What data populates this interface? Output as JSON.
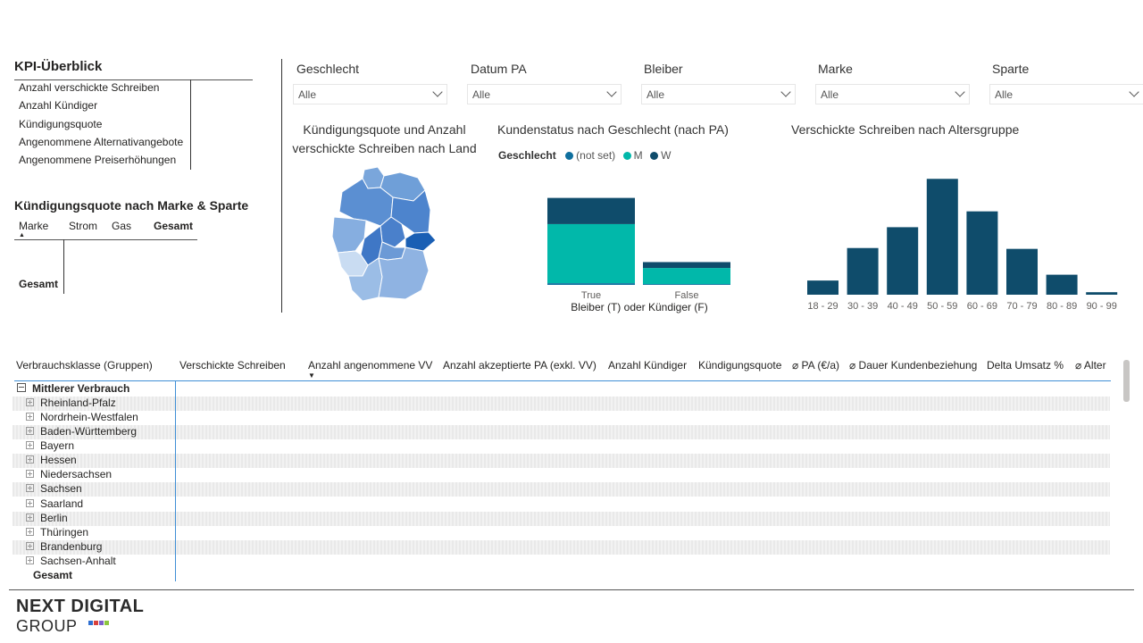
{
  "kpi": {
    "title": "KPI-Überblick",
    "rows": [
      "Anzahl verschickte Schreiben",
      "Anzahl Kündiger",
      "Kündigungsquote",
      "Angenommene Alternativangebote",
      "Angenommene Preiserhöhungen"
    ]
  },
  "quote_matrix": {
    "title": "Kündigungsquote nach Marke & Sparte",
    "headers": [
      "Marke",
      "Strom",
      "Gas",
      "Gesamt"
    ],
    "row_total": "Gesamt"
  },
  "slicers": [
    {
      "label": "Geschlecht",
      "value": "Alle"
    },
    {
      "label": "Datum PA",
      "value": "Alle"
    },
    {
      "label": "Bleiber",
      "value": "Alle"
    },
    {
      "label": "Marke",
      "value": "Alle"
    },
    {
      "label": "Sparte",
      "value": "Alle"
    }
  ],
  "map": {
    "title_line1": "Kündigungsquote und Anzahl",
    "title_line2": "verschickte Schreiben nach Land"
  },
  "chart_data": [
    {
      "type": "bar",
      "title": "Kundenstatus nach Geschlecht (nach PA)",
      "legend_title": "Geschlecht",
      "legend_placement": "top-left",
      "categories": [
        "True",
        "False"
      ],
      "xlabel": "Bleiber (T) oder Kündiger (F)",
      "stacked": true,
      "series": [
        {
          "name": "(not set)",
          "color": "#0f6f9e",
          "values": [
            2,
            1
          ]
        },
        {
          "name": "M",
          "color": "#01b8aa",
          "values": [
            70,
            19
          ]
        },
        {
          "name": "W",
          "color": "#0f4c6b",
          "values": [
            31,
            7
          ]
        }
      ],
      "ylim": [
        0,
        110
      ]
    },
    {
      "type": "bar",
      "title": "Verschickte Schreiben nach Altersgruppe",
      "categories": [
        "18 - 29",
        "30 - 39",
        "40 - 49",
        "50 - 59",
        "60 - 69",
        "70 - 79",
        "80 - 89",
        "90 - 99"
      ],
      "color": "#0f4c6b",
      "values": [
        17,
        56,
        81,
        139,
        100,
        55,
        24,
        3
      ],
      "ylim": [
        0,
        150
      ]
    }
  ],
  "table": {
    "headers": [
      "Verbrauchsklasse (Gruppen)",
      "Verschickte Schreiben",
      "Anzahl angenommene VV",
      "Anzahl akzeptierte PA (exkl. VV)",
      "Anzahl Kündiger",
      "Kündigungsquote",
      "⌀ PA (€/a)",
      "⌀ Dauer Kundenbeziehung",
      "Delta Umsatz %",
      "⌀ Alter"
    ],
    "group": "Mittlerer Verbrauch",
    "rows": [
      "Rheinland-Pfalz",
      "Nordrhein-Westfalen",
      "Baden-Württemberg",
      "Bayern",
      "Hessen",
      "Niedersachsen",
      "Sachsen",
      "Saarland",
      "Berlin",
      "Thüringen",
      "Brandenburg",
      "Sachsen-Anhalt"
    ],
    "total": "Gesamt"
  },
  "logo": {
    "line1": "NEXT DIGITAL",
    "line2": "GROUP"
  }
}
